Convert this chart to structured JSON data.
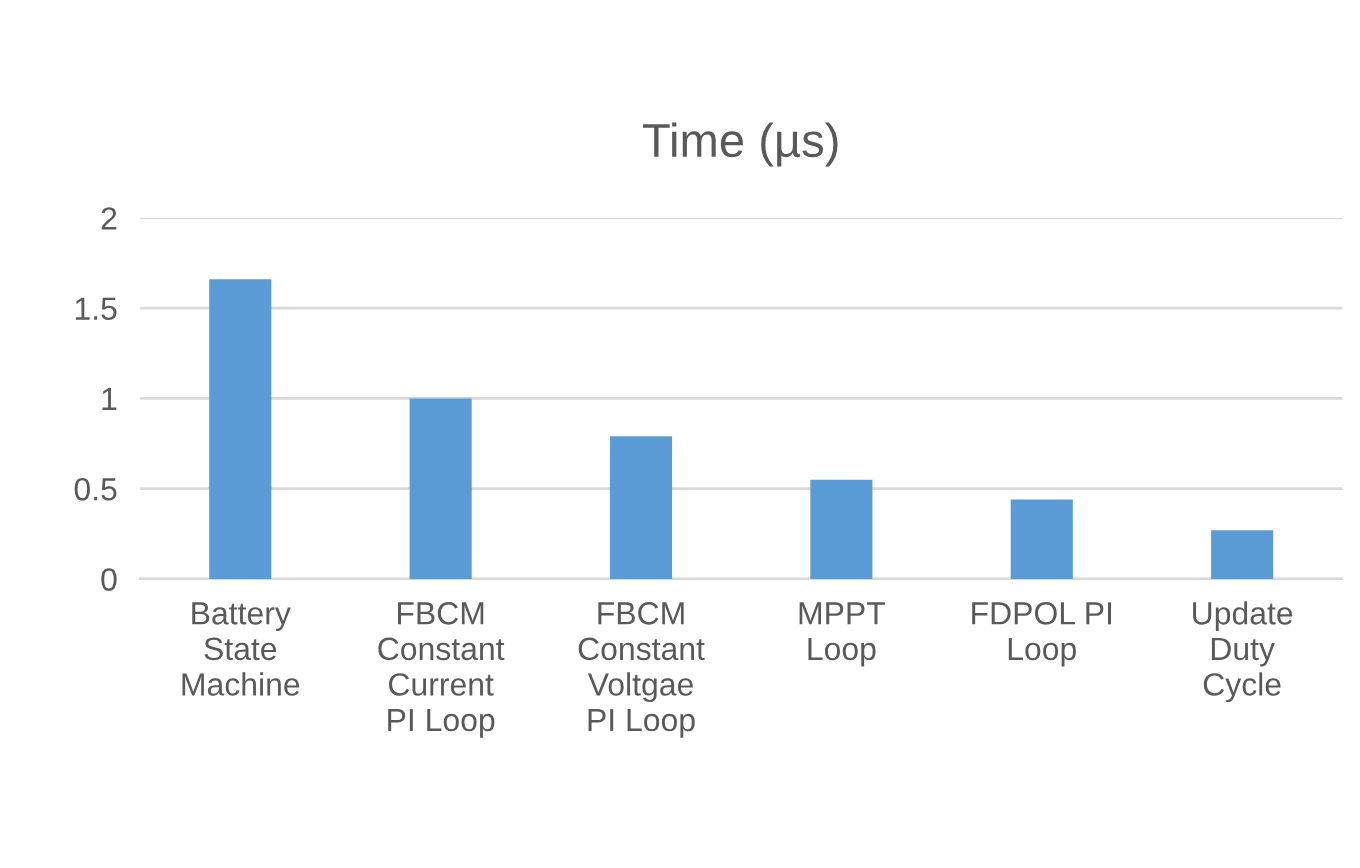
{
  "chart_data": {
    "type": "bar",
    "title": "Time (µs)",
    "categories": [
      "Battery\nState\nMachine",
      "FBCM\nConstant\nCurrent\nPI Loop",
      "FBCM\nConstant\nVoltgae\nPI Loop",
      "MPPT\nLoop",
      "FDPOL PI\nLoop",
      "Update\nDuty\nCycle"
    ],
    "values": [
      1.66,
      1.0,
      0.79,
      0.55,
      0.44,
      0.27
    ],
    "color": "#5b9bd5",
    "ylim": [
      0,
      2
    ],
    "yticks": [
      0,
      {
        "value": 0.5,
        "label": "0.5"
      },
      1,
      {
        "value": 1.5,
        "label": "1.5"
      },
      2
    ],
    "grid": "y"
  }
}
